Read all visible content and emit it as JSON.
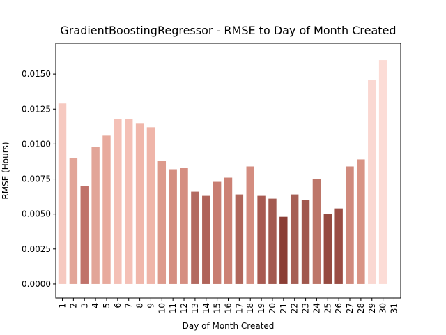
{
  "chart_data": {
    "type": "bar",
    "title": "GradientBoostingRegressor - RMSE to Day of Month Created",
    "xlabel": "Day of Month Created",
    "ylabel": "RMSE (Hours)",
    "categories": [
      "1",
      "2",
      "3",
      "4",
      "5",
      "6",
      "7",
      "8",
      "9",
      "10",
      "11",
      "12",
      "13",
      "14",
      "15",
      "16",
      "17",
      "18",
      "19",
      "20",
      "21",
      "22",
      "23",
      "24",
      "25",
      "26",
      "27",
      "28",
      "29",
      "30",
      "31"
    ],
    "values": [
      0.0129,
      0.009,
      0.007,
      0.0098,
      0.0106,
      0.0118,
      0.0118,
      0.0115,
      0.0112,
      0.0088,
      0.0082,
      0.0083,
      0.0066,
      0.0063,
      0.0073,
      0.0076,
      0.0064,
      0.0084,
      0.0063,
      0.0061,
      0.0048,
      0.0064,
      0.006,
      0.0075,
      0.005,
      0.0054,
      0.0084,
      0.0089,
      0.0146,
      0.016,
      null
    ],
    "colors": [
      "#f6c9c0",
      "#e2a598",
      "#c0726a",
      "#e2a598",
      "#e8aa9d",
      "#f4c0b6",
      "#f4c0b6",
      "#f0b7ab",
      "#efb5a9",
      "#dd9a8c",
      "#d58e81",
      "#d58e81",
      "#b36a61",
      "#b06359",
      "#c87d71",
      "#cc8174",
      "#b0675c",
      "#d48d80",
      "#a85a51",
      "#a35a50",
      "#8b3e35",
      "#a65f55",
      "#a0574d",
      "#bd7669",
      "#954a40",
      "#9a4d44",
      "#d08a7d",
      "#d99485",
      "#fad8d2",
      "#fcdcd6",
      ""
    ],
    "yticks": [
      "0.0000",
      "0.0025",
      "0.0050",
      "0.0075",
      "0.0100",
      "0.0125",
      "0.0150"
    ],
    "ylim": [
      -0.001,
      0.0172
    ],
    "grid": false
  }
}
